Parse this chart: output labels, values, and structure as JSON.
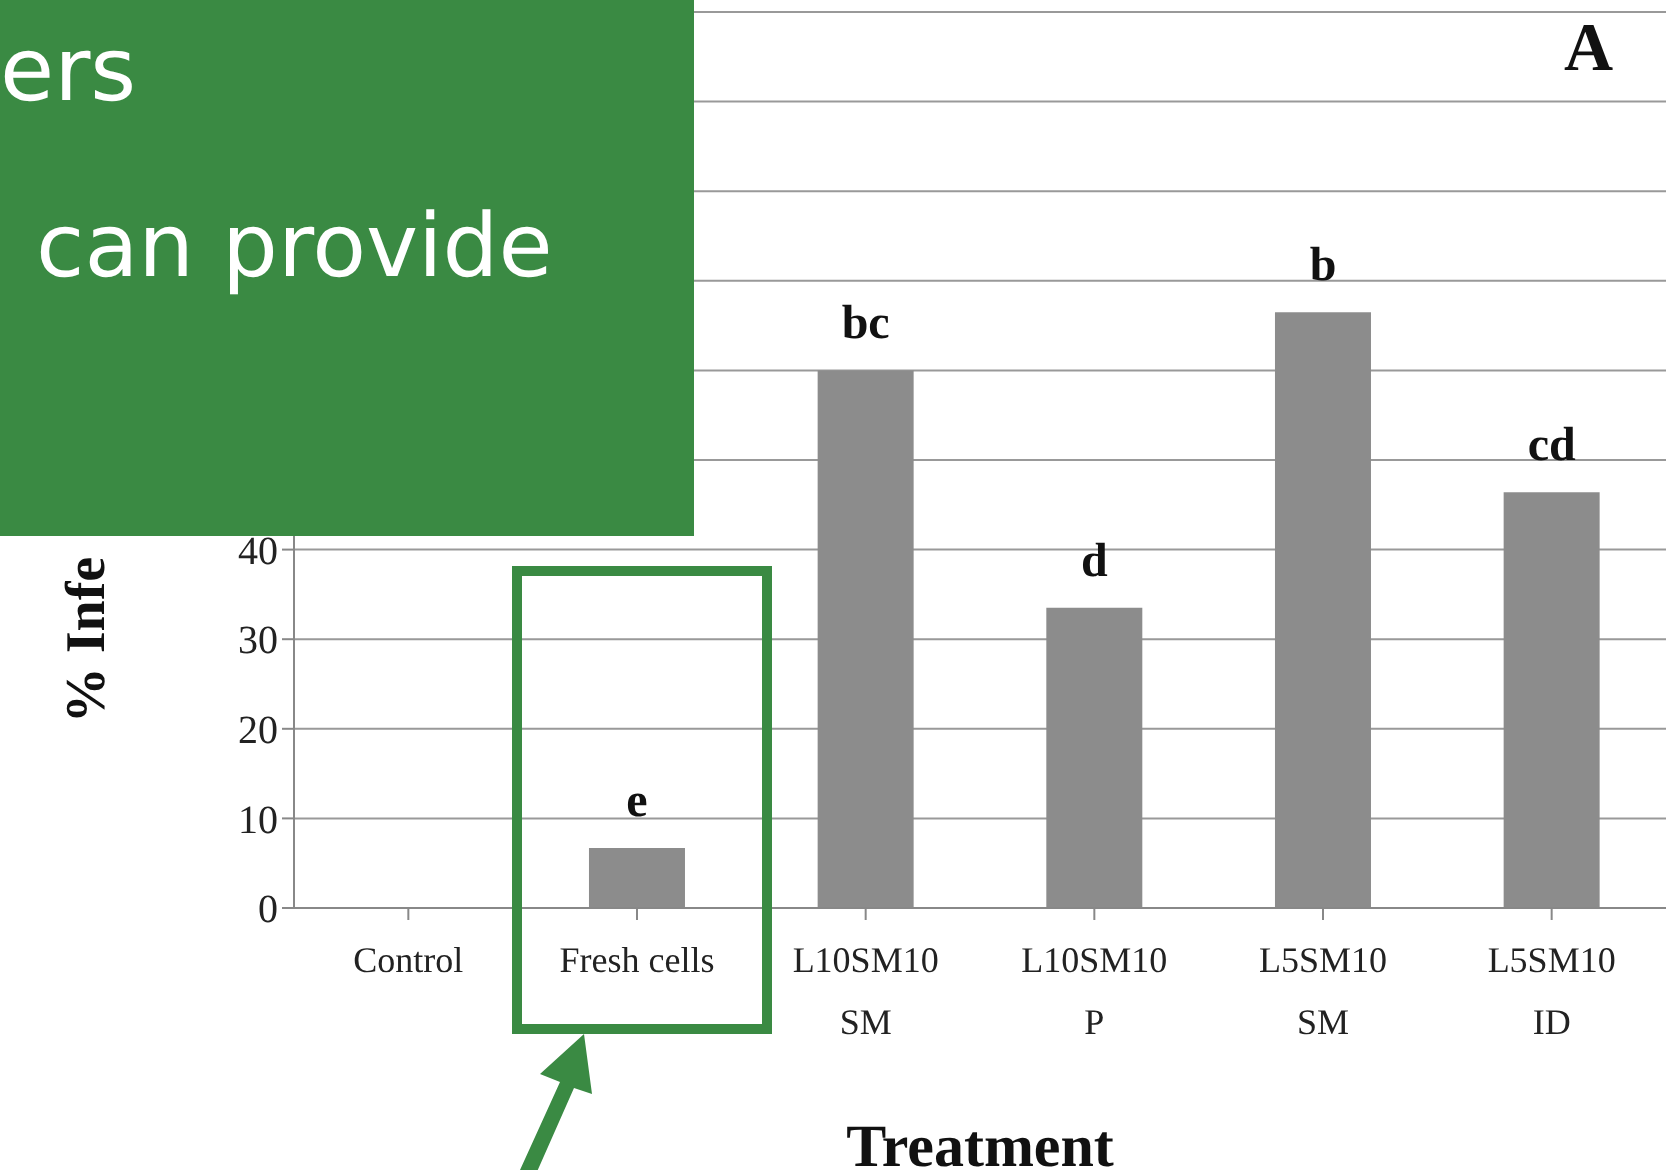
{
  "chart_data": {
    "type": "bar",
    "xlabel": "Treatment",
    "ylabel": "% Infe",
    "categories": [
      "Control",
      "Fresh cells",
      "L10SM10\nSM",
      "L10SM10\nP",
      "L5SM10\nSM",
      "L5SM10\nID"
    ],
    "values": [
      null,
      6.7,
      60,
      33.5,
      66.5,
      46.4
    ],
    "color": "#8c8c8c",
    "ylim": [
      0,
      100
    ],
    "yticks": [
      0,
      10,
      20,
      30,
      40,
      {
        "value": 50,
        "label": null
      },
      {
        "value": 60,
        "label": null
      },
      {
        "value": 70,
        "label": null
      },
      {
        "value": 80,
        "label": null
      },
      {
        "value": 90,
        "label": null
      },
      {
        "value": 100,
        "label": null
      }
    ],
    "grid": "y",
    "legend": false,
    "annotations": [
      "A",
      "ers",
      "can provide",
      {
        "text": "e",
        "x": "Fresh cells",
        "y": 6.7
      },
      {
        "text": "bc",
        "x": "L10SM10\nSM",
        "y": 60
      },
      {
        "text": "d",
        "x": "L10SM10\nP",
        "y": 33.5
      },
      {
        "text": "b",
        "x": "L5SM10\nSM",
        "y": 66.5
      },
      {
        "text": "cd",
        "x": "L5SM10\nID",
        "y": 46.4
      }
    ]
  }
}
